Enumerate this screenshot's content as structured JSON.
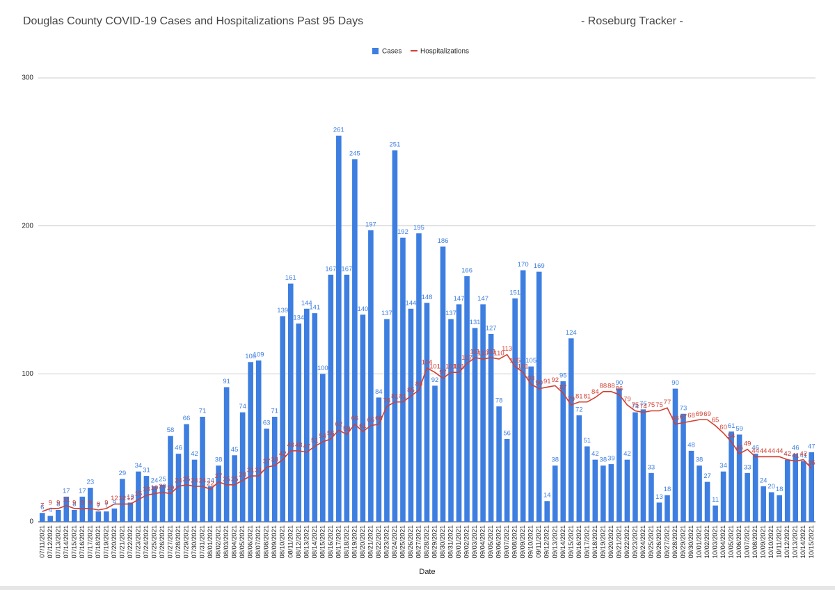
{
  "chart_data": {
    "type": "bar-line",
    "title": "Douglas County COVID-19 Cases and Hospitalizations Past 95 Days",
    "subtitle": "- Roseburg Tracker -",
    "x_label": "Date",
    "categories": [
      "07/11/2021",
      "07/12/2021",
      "07/13/2021",
      "07/14/2021",
      "07/15/2021",
      "07/16/2021",
      "07/17/2021",
      "07/18/2021",
      "07/19/2021",
      "07/20/2021",
      "07/21/2021",
      "07/22/2021",
      "07/23/2021",
      "07/24/2021",
      "07/25/2021",
      "07/26/2021",
      "07/27/2021",
      "07/28/2021",
      "07/29/2021",
      "07/30/2021",
      "07/31/2021",
      "08/01/2021",
      "08/02/2021",
      "08/03/2021",
      "08/04/2021",
      "08/05/2021",
      "08/06/2021",
      "08/07/2021",
      "08/08/2021",
      "08/09/2021",
      "08/10/2021",
      "08/11/2021",
      "08/12/2021",
      "08/13/2021",
      "08/14/2021",
      "08/15/2021",
      "08/16/2021",
      "08/17/2021",
      "08/18/2021",
      "08/19/2021",
      "08/20/2021",
      "08/21/2021",
      "08/22/2021",
      "08/23/2021",
      "08/24/2021",
      "08/25/2021",
      "08/26/2021",
      "08/27/2021",
      "08/28/2021",
      "08/29/2021",
      "08/30/2021",
      "08/31/2021",
      "09/01/2021",
      "09/02/2021",
      "09/03/2021",
      "09/04/2021",
      "09/05/2021",
      "09/06/2021",
      "09/07/2021",
      "09/08/2021",
      "09/09/2021",
      "09/10/2021",
      "09/11/2021",
      "09/12/2021",
      "09/13/2021",
      "09/14/2021",
      "09/15/2021",
      "09/16/2021",
      "09/17/2021",
      "09/18/2021",
      "09/19/2021",
      "09/20/2021",
      "09/21/2021",
      "09/22/2021",
      "09/23/2021",
      "09/24/2021",
      "09/25/2021",
      "09/26/2021",
      "09/27/2021",
      "09/28/2021",
      "09/29/2021",
      "09/30/2021",
      "10/01/2021",
      "10/02/2021",
      "10/03/2021",
      "10/04/2021",
      "10/05/2021",
      "10/06/2021",
      "10/07/2021",
      "10/08/2021",
      "10/09/2021",
      "10/10/2021",
      "10/11/2021",
      "10/12/2021",
      "10/13/2021",
      "10/14/2021",
      "10/15/2021"
    ],
    "series": [
      {
        "name": "Cases",
        "type": "bar",
        "color": "#3d7ee0",
        "values": [
          6,
          4,
          8,
          17,
          8,
          17,
          23,
          7,
          7,
          9,
          29,
          13,
          34,
          31,
          24,
          25,
          58,
          46,
          66,
          42,
          71,
          24,
          38,
          91,
          45,
          74,
          108,
          109,
          63,
          71,
          139,
          161,
          134,
          144,
          141,
          100,
          167,
          261,
          167,
          245,
          140,
          197,
          84,
          137,
          251,
          192,
          144,
          195,
          148,
          92,
          186,
          137,
          147,
          166,
          131,
          147,
          127,
          78,
          56,
          151,
          170,
          105,
          169,
          14,
          38,
          95,
          124,
          72,
          51,
          42,
          38,
          39,
          90,
          42,
          74,
          76,
          33,
          13,
          18,
          90,
          73,
          48,
          38,
          27,
          11,
          34,
          61,
          59,
          33,
          46,
          24,
          20,
          18,
          42,
          46,
          41,
          47
        ]
      },
      {
        "name": "Hospitalizations",
        "type": "line",
        "color": "#d23f31",
        "values": [
          7,
          9,
          9,
          11,
          9,
          9,
          9,
          8,
          9,
          12,
          12,
          12,
          15,
          18,
          19,
          20,
          19,
          24,
          25,
          24,
          24,
          22,
          27,
          25,
          25,
          28,
          31,
          31,
          37,
          38,
          42,
          48,
          48,
          47,
          51,
          54,
          56,
          62,
          59,
          66,
          61,
          65,
          66,
          78,
          81,
          81,
          85,
          89,
          104,
          101,
          97,
          101,
          101,
          107,
          111,
          110,
          111,
          110,
          113,
          105,
          101,
          93,
          90,
          91,
          92,
          87,
          79,
          81,
          81,
          84,
          88,
          88,
          86,
          79,
          75,
          74,
          75,
          75,
          77,
          66,
          67,
          68,
          69,
          69,
          65,
          60,
          54,
          46,
          49,
          44,
          44,
          44,
          44,
          42,
          41,
          42,
          36
        ]
      }
    ],
    "ylim": [
      0,
      300
    ],
    "yticks": [
      0,
      100,
      200,
      300
    ],
    "grid": true,
    "legend": "top"
  }
}
